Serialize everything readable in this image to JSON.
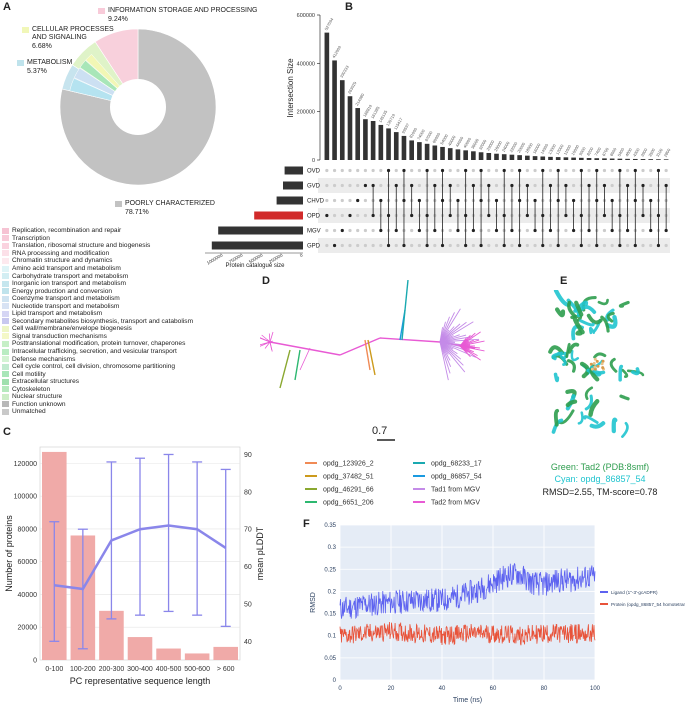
{
  "panels": {
    "a": "A",
    "b": "B",
    "c": "C",
    "d": "D",
    "e": "E",
    "f": "F"
  },
  "panelA": {
    "pie_callouts": [
      {
        "name": "INFORMATION STORAGE AND PROCESSING",
        "pct": "9.24%"
      },
      {
        "name": "CELLULAR PROCESSES AND SIGNALING",
        "pct": "6.68%"
      },
      {
        "name": "METABOLISM",
        "pct": "5.37%"
      },
      {
        "name": "POORLY CHARACTERIZED",
        "pct": "78.71%"
      }
    ],
    "cellular_line1": "CELLULAR PROCESSES",
    "cellular_line2": "AND SIGNALING",
    "legend": [
      {
        "label": "Replication, recombination and repair",
        "color": "#f6c3d3"
      },
      {
        "label": "Transcription",
        "color": "#f8cbd9"
      },
      {
        "label": "Translation, ribosomal structure and biogenesis",
        "color": "#fad3df"
      },
      {
        "label": "RNA processing and modification",
        "color": "#fce0e8"
      },
      {
        "label": "Chromatin structure and dynamics",
        "color": "#fde9ee"
      },
      {
        "label": "Amino acid transport and metabolism",
        "color": "#dff4f7"
      },
      {
        "label": "Carbohydrate transport and metabolism",
        "color": "#d3eef3"
      },
      {
        "label": "Inorganic ion transport and metabolism",
        "color": "#c5e6ee"
      },
      {
        "label": "Energy production and conversion",
        "color": "#bfe3ec"
      },
      {
        "label": "Coenzyme transport and metabolism",
        "color": "#cfe3f1"
      },
      {
        "label": "Nucleotide transport and metabolism",
        "color": "#d8e3f4"
      },
      {
        "label": "Lipid transport and metabolism",
        "color": "#d6d6f4"
      },
      {
        "label": "Secondary metabolites biosynthesis, transport and catabolism",
        "color": "#c8c8ef"
      },
      {
        "label": "Cell wall/membrane/envelope biogenesis",
        "color": "#eef6c6"
      },
      {
        "label": "Signal transduction mechanisms",
        "color": "#f4f8c8"
      },
      {
        "label": "Posttranslational modification, protein turnover, chaperones",
        "color": "#c6efc6"
      },
      {
        "label": "Intracellular trafficking, secretion, and vesicular transport",
        "color": "#b9ecc2"
      },
      {
        "label": "Defense mechanisms",
        "color": "#d3f3d3"
      },
      {
        "label": "Cell cycle control, cell division, chromosome partitioning",
        "color": "#c2ebd0"
      },
      {
        "label": "Cell motility",
        "color": "#a8e6b8"
      },
      {
        "label": "Extracellular structures",
        "color": "#9fe0ae"
      },
      {
        "label": "Cytoskeleton",
        "color": "#b5e9bd"
      },
      {
        "label": "Nuclear structure",
        "color": "#cdeec8"
      },
      {
        "label": "Function unknown",
        "color": "#b8b8b8"
      },
      {
        "label": "Unmatched",
        "color": "#c9c9c9"
      }
    ]
  },
  "panelB": {
    "ylabel": "Intersection Size",
    "yticks": [
      "0",
      "200000",
      "400000",
      "600000"
    ],
    "xlabel": "Protein catalogue size",
    "xticks": [
      "1250000",
      "1000000",
      "750000",
      "500000",
      "250000",
      "0"
    ],
    "sets": [
      {
        "name": "OVD",
        "size": 230000,
        "color": "#333333"
      },
      {
        "name": "GVD",
        "size": 250000,
        "color": "#333333"
      },
      {
        "name": "CHVD",
        "size": 330000,
        "color": "#333333"
      },
      {
        "name": "OPD",
        "size": 610000,
        "color": "#d12a2a"
      },
      {
        "name": "MGV",
        "size": 1060000,
        "color": "#333333"
      },
      {
        "name": "GPD",
        "size": 1140000,
        "color": "#333333"
      }
    ],
    "bar_labels": [
      "527094",
      "412009",
      "330333",
      "263929",
      "214980",
      "168819",
      "161385",
      "145135",
      "130719",
      "115417",
      "99597",
      "81000",
      "74000",
      "67000",
      "60000",
      "54000",
      "49000",
      "44000",
      "40000",
      "36000",
      "32000",
      "29000",
      "26000",
      "24000",
      "22000",
      "20000",
      "18000",
      "16000",
      "14500",
      "13000",
      "12000",
      "11000",
      "10000",
      "9000",
      "8200",
      "7400",
      "6700",
      "6000",
      "5400",
      "4800",
      "4300",
      "3900",
      "3500",
      "3100",
      "2800"
    ],
    "bar_values": [
      527094,
      412009,
      330333,
      263929,
      214980,
      168819,
      161385,
      145135,
      130719,
      115417,
      99597,
      81000,
      74000,
      67000,
      60000,
      54000,
      49000,
      44000,
      40000,
      36000,
      32000,
      29000,
      26000,
      24000,
      22000,
      20000,
      18000,
      16000,
      14500,
      13000,
      12000,
      11000,
      10000,
      9000,
      8200,
      7400,
      6700,
      6000,
      5400,
      4800,
      4300,
      3900,
      3500,
      3100,
      2800
    ]
  },
  "chart_data": [
    {
      "type": "bar",
      "title": "",
      "xlabel": "PC representative sequence length",
      "ylabel": "Number of proteins",
      "ylabel_right": "mean pLDDT",
      "categories": [
        "0-100",
        "100-200",
        "200-300",
        "300-400",
        "400-500",
        "500-600",
        "> 600"
      ],
      "series": [
        {
          "name": "",
          "values": [
            127000,
            76000,
            30000,
            14000,
            7000,
            4000,
            8000
          ]
        },
        {
          "name": "",
          "values": [
            55,
            54,
            67,
            70,
            71,
            70,
            65
          ],
          "axis": "right"
        }
      ],
      "ylim": [
        0,
        130000
      ],
      "yticks": [
        "0",
        "20000",
        "40000",
        "60000",
        "80000",
        "100000",
        "120000"
      ],
      "ylim_right": [
        35,
        92
      ],
      "yticks_right": [
        "40",
        "50",
        "60",
        "70",
        "80",
        "90"
      ],
      "err_lo": [
        40,
        38,
        46,
        47,
        48,
        47,
        44
      ],
      "err_hi": [
        72,
        70,
        88,
        89,
        90,
        88,
        86
      ],
      "bar_color": "#f0aaa8",
      "line_color": "#8a86ea"
    },
    {
      "type": "line",
      "title": "",
      "xlabel": "Time (ns)",
      "ylabel": "RMSD",
      "xlim": [
        0,
        100
      ],
      "ylim": [
        0,
        0.35
      ],
      "xticks": [
        "0",
        "20",
        "40",
        "60",
        "80",
        "100"
      ],
      "yticks": [
        "0",
        "0.05",
        "0.1",
        "0.15",
        "0.2",
        "0.25",
        "0.3",
        "0.35"
      ],
      "series": [
        {
          "name": "Ligand (1''-3'-gcADPR)",
          "color": "#5d62f0",
          "x": [
            0,
            10,
            20,
            30,
            40,
            50,
            55,
            60,
            65,
            70,
            75,
            80,
            85,
            90,
            95,
            100
          ],
          "y": [
            0.16,
            0.17,
            0.175,
            0.18,
            0.18,
            0.195,
            0.205,
            0.22,
            0.235,
            0.24,
            0.22,
            0.215,
            0.225,
            0.225,
            0.23,
            0.235
          ]
        },
        {
          "name": "Protein (opdg_86857_54 homotetramer)",
          "color": "#e8533a",
          "x": [
            0,
            10,
            20,
            30,
            40,
            50,
            60,
            70,
            80,
            90,
            100
          ],
          "y": [
            0.1,
            0.105,
            0.11,
            0.105,
            0.1,
            0.105,
            0.105,
            0.1,
            0.105,
            0.105,
            0.105
          ]
        }
      ]
    }
  ],
  "panelD": {
    "scale": "0.7",
    "legend": [
      {
        "label": "opdg_123926_2",
        "color": "#f08a55"
      },
      {
        "label": "opdg_68233_17",
        "color": "#1aa9b0"
      },
      {
        "label": "opdg_37482_51",
        "color": "#cc9a1c"
      },
      {
        "label": "opdg_86857_54",
        "color": "#1a9ae0"
      },
      {
        "label": "opdg_46291_66",
        "color": "#8aa830"
      },
      {
        "label": "Tad1 from MGV",
        "color": "#c48be8"
      },
      {
        "label": "opdg_6651_206",
        "color": "#2db870"
      },
      {
        "label": "Tad2 from MGV",
        "color": "#e85ad4"
      }
    ]
  },
  "panelE": {
    "green_text": "Green: Tad2 (PDB:8smf)",
    "cyan_text": "Cyan: opdg_86857_54",
    "rmsd_text": "RMSD=2.55, TM-score=0.78",
    "green": "#2e9d4e",
    "cyan": "#20c4cf"
  }
}
